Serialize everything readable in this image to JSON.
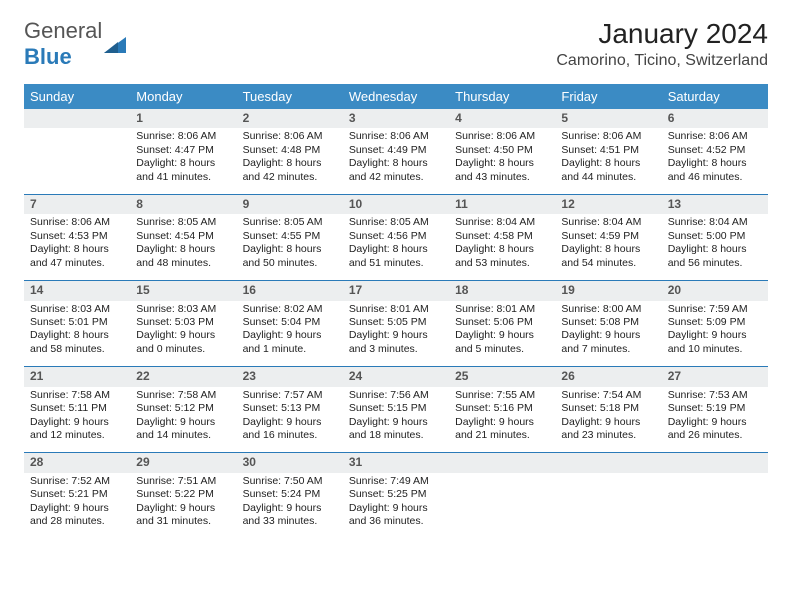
{
  "logo": {
    "part1": "General",
    "part2": "Blue"
  },
  "title": "January 2024",
  "location": "Camorino, Ticino, Switzerland",
  "colors": {
    "header_bg": "#3b8bc4",
    "header_fg": "#ffffff",
    "daynum_bg": "#eceeef",
    "row_border": "#2a7ab8",
    "logo_accent": "#2a7ab8",
    "body_text": "#222222"
  },
  "typography": {
    "title_fontsize": 28,
    "location_fontsize": 16,
    "dayhead_fontsize": 13,
    "cell_fontsize": 10.5
  },
  "day_headers": [
    "Sunday",
    "Monday",
    "Tuesday",
    "Wednesday",
    "Thursday",
    "Friday",
    "Saturday"
  ],
  "weeks": [
    [
      null,
      {
        "n": "1",
        "sr": "8:06 AM",
        "ss": "4:47 PM",
        "dl": "8 hours and 41 minutes."
      },
      {
        "n": "2",
        "sr": "8:06 AM",
        "ss": "4:48 PM",
        "dl": "8 hours and 42 minutes."
      },
      {
        "n": "3",
        "sr": "8:06 AM",
        "ss": "4:49 PM",
        "dl": "8 hours and 42 minutes."
      },
      {
        "n": "4",
        "sr": "8:06 AM",
        "ss": "4:50 PM",
        "dl": "8 hours and 43 minutes."
      },
      {
        "n": "5",
        "sr": "8:06 AM",
        "ss": "4:51 PM",
        "dl": "8 hours and 44 minutes."
      },
      {
        "n": "6",
        "sr": "8:06 AM",
        "ss": "4:52 PM",
        "dl": "8 hours and 46 minutes."
      }
    ],
    [
      {
        "n": "7",
        "sr": "8:06 AM",
        "ss": "4:53 PM",
        "dl": "8 hours and 47 minutes."
      },
      {
        "n": "8",
        "sr": "8:05 AM",
        "ss": "4:54 PM",
        "dl": "8 hours and 48 minutes."
      },
      {
        "n": "9",
        "sr": "8:05 AM",
        "ss": "4:55 PM",
        "dl": "8 hours and 50 minutes."
      },
      {
        "n": "10",
        "sr": "8:05 AM",
        "ss": "4:56 PM",
        "dl": "8 hours and 51 minutes."
      },
      {
        "n": "11",
        "sr": "8:04 AM",
        "ss": "4:58 PM",
        "dl": "8 hours and 53 minutes."
      },
      {
        "n": "12",
        "sr": "8:04 AM",
        "ss": "4:59 PM",
        "dl": "8 hours and 54 minutes."
      },
      {
        "n": "13",
        "sr": "8:04 AM",
        "ss": "5:00 PM",
        "dl": "8 hours and 56 minutes."
      }
    ],
    [
      {
        "n": "14",
        "sr": "8:03 AM",
        "ss": "5:01 PM",
        "dl": "8 hours and 58 minutes."
      },
      {
        "n": "15",
        "sr": "8:03 AM",
        "ss": "5:03 PM",
        "dl": "9 hours and 0 minutes."
      },
      {
        "n": "16",
        "sr": "8:02 AM",
        "ss": "5:04 PM",
        "dl": "9 hours and 1 minute."
      },
      {
        "n": "17",
        "sr": "8:01 AM",
        "ss": "5:05 PM",
        "dl": "9 hours and 3 minutes."
      },
      {
        "n": "18",
        "sr": "8:01 AM",
        "ss": "5:06 PM",
        "dl": "9 hours and 5 minutes."
      },
      {
        "n": "19",
        "sr": "8:00 AM",
        "ss": "5:08 PM",
        "dl": "9 hours and 7 minutes."
      },
      {
        "n": "20",
        "sr": "7:59 AM",
        "ss": "5:09 PM",
        "dl": "9 hours and 10 minutes."
      }
    ],
    [
      {
        "n": "21",
        "sr": "7:58 AM",
        "ss": "5:11 PM",
        "dl": "9 hours and 12 minutes."
      },
      {
        "n": "22",
        "sr": "7:58 AM",
        "ss": "5:12 PM",
        "dl": "9 hours and 14 minutes."
      },
      {
        "n": "23",
        "sr": "7:57 AM",
        "ss": "5:13 PM",
        "dl": "9 hours and 16 minutes."
      },
      {
        "n": "24",
        "sr": "7:56 AM",
        "ss": "5:15 PM",
        "dl": "9 hours and 18 minutes."
      },
      {
        "n": "25",
        "sr": "7:55 AM",
        "ss": "5:16 PM",
        "dl": "9 hours and 21 minutes."
      },
      {
        "n": "26",
        "sr": "7:54 AM",
        "ss": "5:18 PM",
        "dl": "9 hours and 23 minutes."
      },
      {
        "n": "27",
        "sr": "7:53 AM",
        "ss": "5:19 PM",
        "dl": "9 hours and 26 minutes."
      }
    ],
    [
      {
        "n": "28",
        "sr": "7:52 AM",
        "ss": "5:21 PM",
        "dl": "9 hours and 28 minutes."
      },
      {
        "n": "29",
        "sr": "7:51 AM",
        "ss": "5:22 PM",
        "dl": "9 hours and 31 minutes."
      },
      {
        "n": "30",
        "sr": "7:50 AM",
        "ss": "5:24 PM",
        "dl": "9 hours and 33 minutes."
      },
      {
        "n": "31",
        "sr": "7:49 AM",
        "ss": "5:25 PM",
        "dl": "9 hours and 36 minutes."
      },
      null,
      null,
      null
    ]
  ],
  "labels": {
    "sunrise": "Sunrise: ",
    "sunset": "Sunset: ",
    "daylight": "Daylight: "
  }
}
